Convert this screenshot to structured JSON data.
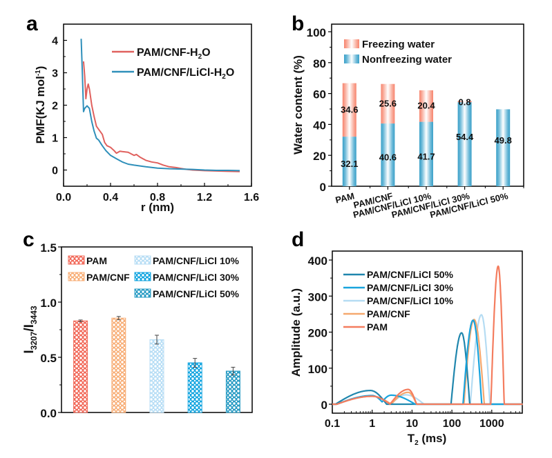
{
  "panels": {
    "a": "a",
    "b": "b",
    "c": "c",
    "d": "d"
  },
  "chart_data": [
    {
      "id": "a",
      "type": "line",
      "title": "",
      "xlabel": "r (nm)",
      "ylabel": "PMF(KJ mol⁻¹)",
      "xlim": [
        0.0,
        1.6
      ],
      "ylim": [
        -0.5,
        4.5
      ],
      "xticks": [
        0.0,
        0.4,
        0.8,
        1.2,
        1.6
      ],
      "xtick_labels": [
        "0.0",
        "0.4",
        "0.8",
        "1.2",
        "1.6"
      ],
      "yticks": [
        0,
        1,
        2,
        3,
        4
      ],
      "ytick_labels": [
        "0",
        "1",
        "2",
        "3",
        "4"
      ],
      "grid": false,
      "legend": "top-right",
      "series": [
        {
          "name": "PAM/CNF-H₂O",
          "color": "#e0605d",
          "x": [
            0.17,
            0.18,
            0.19,
            0.2,
            0.21,
            0.22,
            0.24,
            0.26,
            0.28,
            0.3,
            0.33,
            0.35,
            0.37,
            0.4,
            0.43,
            0.45,
            0.48,
            0.5,
            0.55,
            0.6,
            0.62,
            0.65,
            0.7,
            0.75,
            0.8,
            0.85,
            0.9,
            0.95,
            1.0,
            1.05,
            1.1,
            1.2,
            1.3,
            1.4,
            1.5
          ],
          "y": [
            3.35,
            2.9,
            2.2,
            2.5,
            2.65,
            2.5,
            2.0,
            1.65,
            1.35,
            1.25,
            1.1,
            0.85,
            0.75,
            0.7,
            0.6,
            0.52,
            0.58,
            0.57,
            0.55,
            0.45,
            0.48,
            0.4,
            0.3,
            0.25,
            0.22,
            0.15,
            0.1,
            0.08,
            0.05,
            0.02,
            0.0,
            -0.02,
            -0.03,
            -0.04,
            -0.05
          ]
        },
        {
          "name": "PAM/CNF/LiCl-H₂O",
          "color": "#2e8fba",
          "x": [
            0.15,
            0.16,
            0.17,
            0.18,
            0.2,
            0.22,
            0.24,
            0.26,
            0.28,
            0.3,
            0.33,
            0.36,
            0.4,
            0.45,
            0.5,
            0.55,
            0.6,
            0.7,
            0.8,
            0.9,
            1.0,
            1.1,
            1.2,
            1.3,
            1.4,
            1.5
          ],
          "y": [
            4.05,
            3.0,
            1.8,
            1.9,
            1.98,
            1.9,
            1.5,
            1.2,
            0.98,
            0.92,
            0.75,
            0.6,
            0.45,
            0.35,
            0.25,
            0.18,
            0.15,
            0.1,
            0.06,
            0.04,
            0.03,
            0.02,
            0.0,
            -0.01,
            -0.01,
            -0.02
          ]
        }
      ]
    },
    {
      "id": "b",
      "type": "bar",
      "stacked": true,
      "title": "",
      "xlabel": "",
      "ylabel": "Water content (%)",
      "ylim": [
        0,
        100
      ],
      "yticks": [
        0,
        20,
        40,
        60,
        80,
        100
      ],
      "ytick_labels": [
        "0",
        "20",
        "40",
        "60",
        "80",
        "100"
      ],
      "categories": [
        "PAM",
        "PAM/CNF",
        "PAM/CNF/LiCl 10%",
        "PAM/CNF/LiCl 30%",
        "PAM/CNF/LiCl 50%"
      ],
      "legend": "top-left",
      "series": [
        {
          "name": "Nonfreezing water",
          "color": "#3aa0c8",
          "values": [
            32.1,
            40.6,
            41.7,
            54.4,
            49.8
          ],
          "labels": [
            "32.1",
            "40.6",
            "41.7",
            "54.4",
            "49.8"
          ]
        },
        {
          "name": "Freezing water",
          "color": "#f7846e",
          "values": [
            34.6,
            25.6,
            20.4,
            0.8,
            0
          ],
          "labels": [
            "34.6",
            "25.6",
            "20.4",
            "0.8",
            ""
          ]
        }
      ],
      "legend_order": [
        "Freezing water",
        "Nonfreezing water"
      ]
    },
    {
      "id": "c",
      "type": "bar",
      "title": "",
      "xlabel": "",
      "ylabel": "I3207/I3443",
      "ylabel_main": "I",
      "ylabel_sub1": "3207",
      "ylabel_sep": "/I",
      "ylabel_sub2": "3443",
      "ylim": [
        0.0,
        1.5
      ],
      "yticks": [
        0.0,
        0.5,
        1.0,
        1.5
      ],
      "ytick_labels": [
        "0.0",
        "0.5",
        "1.0",
        "1.5"
      ],
      "categories": [
        "PAM",
        "PAM/CNF",
        "PAM/CNF/LiCl 10%",
        "PAM/CNF/LiCl 30%",
        "PAM/CNF/LiCl 50%"
      ],
      "values": [
        0.83,
        0.855,
        0.66,
        0.45,
        0.375
      ],
      "errors": [
        0.008,
        0.015,
        0.04,
        0.04,
        0.035
      ],
      "colors": [
        "#f26b5b",
        "#f8b07a",
        "#b8def5",
        "#15a6e0",
        "#2a9cc4"
      ],
      "legend": "top",
      "legend_entries": [
        "PAM",
        "PAM/CNF",
        "PAM/CNF/LiCl 10%",
        "PAM/CNF/LiCl 30%",
        "PAM/CNF/LiCl 50%"
      ]
    },
    {
      "id": "d",
      "type": "line",
      "title": "",
      "xlabel": "T2 (ms)",
      "xlabel_main": "T",
      "xlabel_sub": "2",
      "xlabel_rest": " (ms)",
      "ylabel": "Amplitude (a.u.)",
      "xscale": "log",
      "xlim": [
        0.1,
        6000
      ],
      "ylim": [
        -25,
        415
      ],
      "xticks": [
        0.1,
        1,
        10,
        100,
        1000
      ],
      "xtick_labels": [
        "0.1",
        "1",
        "10",
        "100",
        "1000"
      ],
      "yticks": [
        0,
        100,
        200,
        300,
        400
      ],
      "ytick_labels": [
        "0",
        "100",
        "200",
        "300",
        "400"
      ],
      "legend": "top-left",
      "series": [
        {
          "name": "PAM/CNF/LiCl 50%",
          "color": "#1f86ad",
          "peaks": [
            {
              "center": 0.9,
              "amp": 38,
              "lo": 0.12,
              "hi": 2.3
            },
            {
              "center": 175,
              "amp": 198,
              "lo": 95,
              "hi": 280
            }
          ]
        },
        {
          "name": "PAM/CNF/LiCl 30%",
          "color": "#17a3dd",
          "peaks": [
            {
              "center": 1.0,
              "amp": 24,
              "lo": 0.13,
              "hi": 2.0
            },
            {
              "center": 3.0,
              "amp": 25,
              "lo": 1.6,
              "hi": 12
            },
            {
              "center": 340,
              "amp": 233,
              "lo": 190,
              "hi": 560
            }
          ]
        },
        {
          "name": "PAM/CNF/LiCl 10%",
          "color": "#b5dcf3",
          "peaks": [
            {
              "center": 1.0,
              "amp": 22,
              "lo": 0.13,
              "hi": 3.0
            },
            {
              "center": 7,
              "amp": 26,
              "lo": 3.0,
              "hi": 20
            },
            {
              "center": 550,
              "amp": 248,
              "lo": 290,
              "hi": 900
            }
          ]
        },
        {
          "name": "PAM/CNF",
          "color": "#f5a86e",
          "peaks": [
            {
              "center": 1.0,
              "amp": 22,
              "lo": 0.13,
              "hi": 3.0
            },
            {
              "center": 8,
              "amp": 33,
              "lo": 3.0,
              "hi": 13
            },
            {
              "center": 360,
              "amp": 235,
              "lo": 200,
              "hi": 650
            }
          ]
        },
        {
          "name": "PAM",
          "color": "#f47c5e",
          "peaks": [
            {
              "center": 1.0,
              "amp": 22,
              "lo": 0.13,
              "hi": 2.8
            },
            {
              "center": 8,
              "amp": 41,
              "lo": 2.8,
              "hi": 13
            },
            {
              "center": 1450,
              "amp": 383,
              "lo": 950,
              "hi": 2050
            }
          ]
        }
      ]
    }
  ]
}
